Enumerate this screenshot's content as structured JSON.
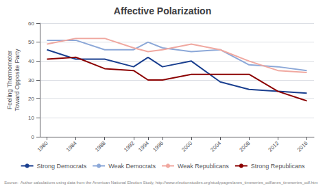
{
  "chart_data": {
    "type": "line",
    "title": "Affective Polarization",
    "ylabel": "Feeling Thermometer\nToward Opposite Party",
    "x": [
      1980,
      1984,
      1988,
      1992,
      1994,
      1996,
      2000,
      2004,
      2008,
      2012,
      2016
    ],
    "series": [
      {
        "name": "Strong Democrats",
        "color": "#1a3f8f",
        "values": [
          46,
          41,
          41,
          37,
          42,
          37,
          40,
          29,
          25,
          24,
          23
        ]
      },
      {
        "name": "Weak Democrats",
        "color": "#8ca8d8",
        "values": [
          51,
          51,
          46,
          46,
          50,
          47,
          45,
          46,
          38,
          37,
          35
        ]
      },
      {
        "name": "Weak Republicans",
        "color": "#f0a8a0",
        "values": [
          49,
          52,
          52,
          47,
          45,
          46,
          49,
          46,
          40,
          35,
          34
        ]
      },
      {
        "name": "Strong Republicans",
        "color": "#8b0000",
        "values": [
          41,
          42,
          36,
          35,
          30,
          30,
          33,
          33,
          33,
          24,
          19
        ]
      }
    ],
    "xlim": [
      1979,
      2017
    ],
    "xticks": [
      1980,
      1984,
      1988,
      1992,
      1994,
      1996,
      2000,
      2004,
      2008,
      2012,
      2016
    ],
    "ylim": [
      0,
      60
    ],
    "yticks": [
      0,
      10,
      20,
      30,
      40,
      50,
      60
    ],
    "grid": true,
    "legend": "bottom",
    "source": "Source:  Author calculations using data from the American National Election Study, http://www.electionstudies.org/studypages/anes_timeseries_cdf/anes_timeseries_cdf.htm"
  }
}
